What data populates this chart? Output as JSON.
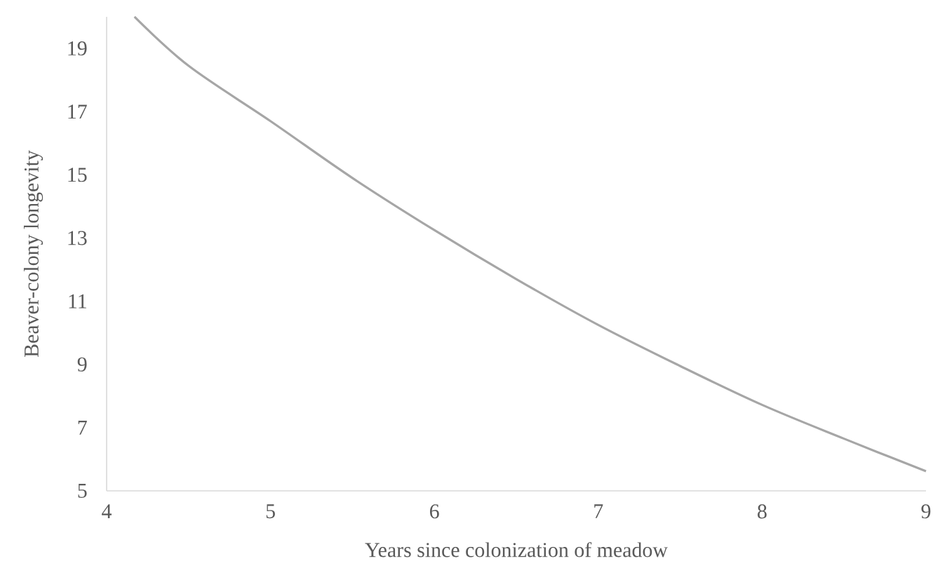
{
  "chart_data": {
    "type": "line",
    "xlabel": "Years since colonization of meadow",
    "ylabel": "Beaver-colony longevity",
    "x": [
      4.17,
      4.5,
      5,
      5.5,
      6,
      6.5,
      7,
      7.5,
      8,
      8.5,
      9
    ],
    "series": [
      {
        "color": "#a6a6a6",
        "values": [
          20,
          18.45,
          16.7,
          14.9,
          13.25,
          11.7,
          10.25,
          8.95,
          7.72,
          6.65,
          5.62
        ]
      }
    ],
    "xlim": [
      4,
      9
    ],
    "ylim": [
      5,
      20
    ],
    "xticks": [
      4,
      5,
      6,
      7,
      8,
      9
    ],
    "yticks": [
      5,
      7,
      9,
      11,
      13,
      15,
      17,
      19
    ],
    "grid": false,
    "marker": "none",
    "line_style": "solid"
  }
}
